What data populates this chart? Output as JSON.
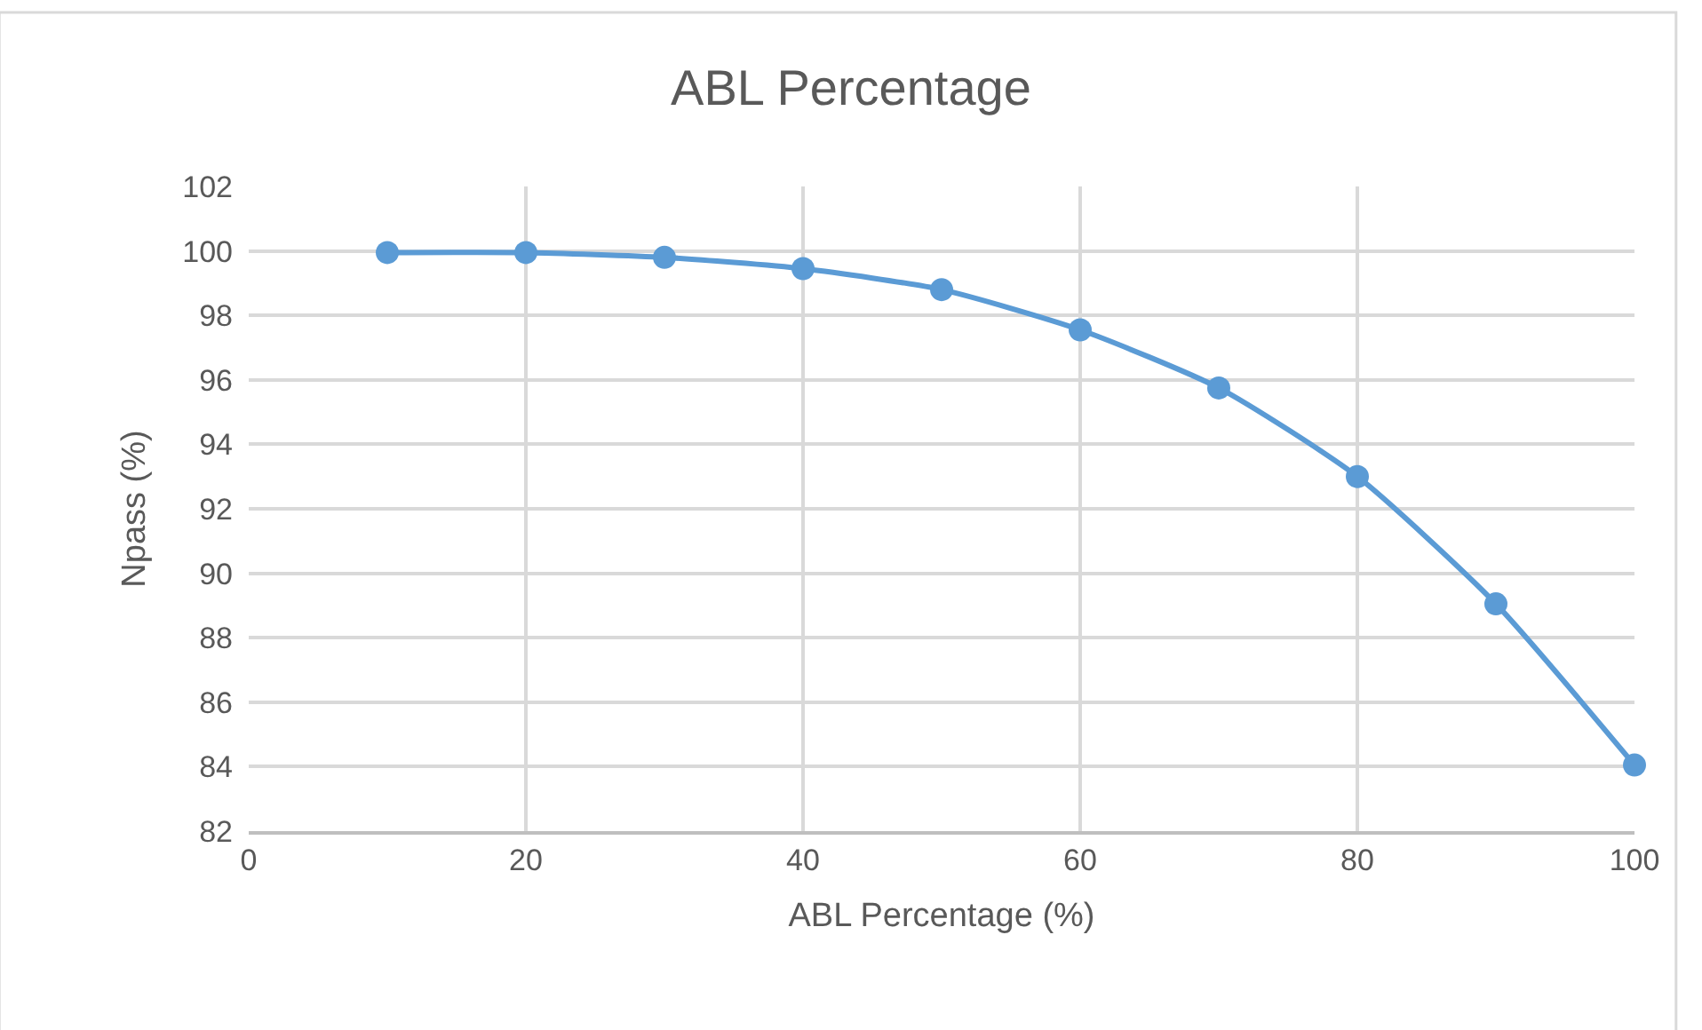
{
  "chart_data": {
    "type": "line",
    "title": "ABL Percentage",
    "xlabel": "ABL Percentage (%)",
    "ylabel": "Npass (%)",
    "x": [
      10,
      20,
      30,
      40,
      50,
      60,
      70,
      80,
      90,
      100
    ],
    "series": [
      {
        "color": "#5b9bd5",
        "values": [
          99.95,
          99.95,
          99.8,
          99.45,
          98.8,
          97.55,
          95.75,
          93.0,
          89.05,
          84.05
        ]
      }
    ],
    "xlim": [
      0,
      100
    ],
    "xticks": [
      0,
      20,
      40,
      60,
      80,
      100
    ],
    "ylim": [
      82,
      102
    ],
    "yticks": [
      82,
      84,
      86,
      88,
      90,
      92,
      94,
      96,
      98,
      100,
      102
    ],
    "grid": true,
    "marker": "circle",
    "line_style": "solid"
  }
}
